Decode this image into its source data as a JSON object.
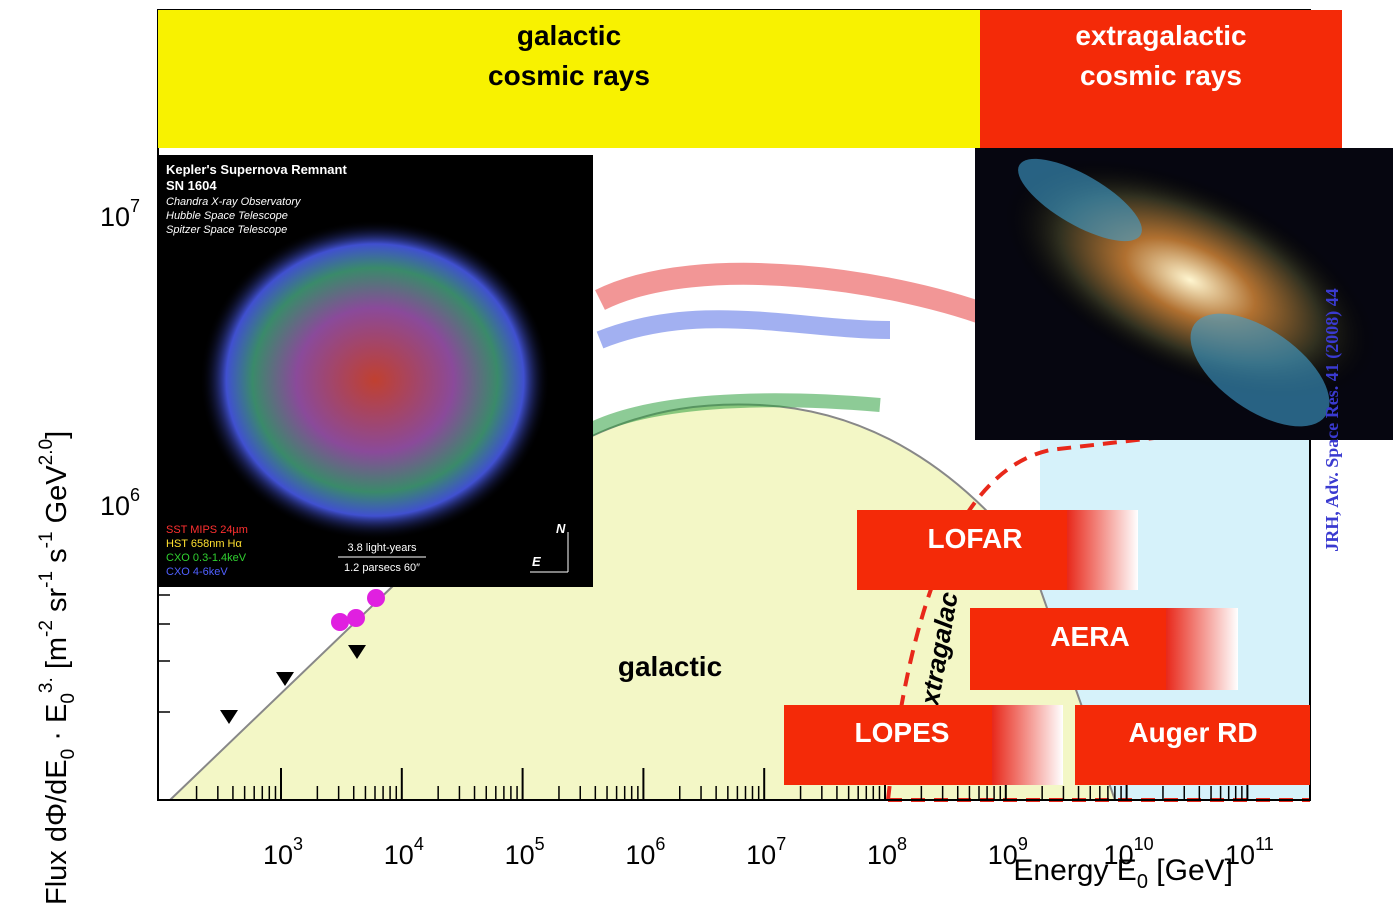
{
  "bands": [
    {
      "lines": [
        "galactic",
        "cosmic rays"
      ]
    },
    {
      "lines": [
        "extragalactic",
        "cosmic rays"
      ]
    }
  ],
  "inset": {
    "lines": [
      "Kepler's Supernova Remnant",
      "SN 1604",
      "Chandra X-ray Observatory",
      "Hubble Space Telescope",
      "Spitzer Space Telescope"
    ],
    "legend": [
      "SST MIPS 24µm",
      "HST 658nm Hα",
      "CXO 0.3-1.4keV",
      "CXO 4-6keV"
    ],
    "scale": [
      "3.8 light-years",
      "1.2 parsecs 60″"
    ],
    "compass": [
      "N",
      "E"
    ]
  },
  "regions": {
    "galactic": "galactic",
    "extragalactic": "xtragalac"
  },
  "experiments": [
    "LOFAR",
    "AERA",
    "LOPES",
    "Auger RD"
  ],
  "x_axis": {
    "title": [
      "Energy E",
      "0",
      " [GeV]"
    ],
    "ticks": [
      [
        "10",
        "3"
      ],
      [
        "10",
        "4"
      ],
      [
        "10",
        "5"
      ],
      [
        "10",
        "6"
      ],
      [
        "10",
        "7"
      ],
      [
        "10",
        "8"
      ],
      [
        "10",
        "9"
      ],
      [
        "10",
        "10"
      ],
      [
        "10",
        "11"
      ]
    ]
  },
  "y_axis": {
    "title": [
      "Flux dΦ/dE",
      "0",
      " · E",
      "0",
      "3.",
      " [m",
      "-2",
      " sr",
      "-1",
      " s",
      "-1",
      " GeV",
      "2.0",
      "]"
    ],
    "ticks": [
      [
        "10",
        "7"
      ],
      [
        "10",
        "6"
      ]
    ]
  },
  "citation": "JRH, Adv. Space Res. 41 (2008) 44"
}
